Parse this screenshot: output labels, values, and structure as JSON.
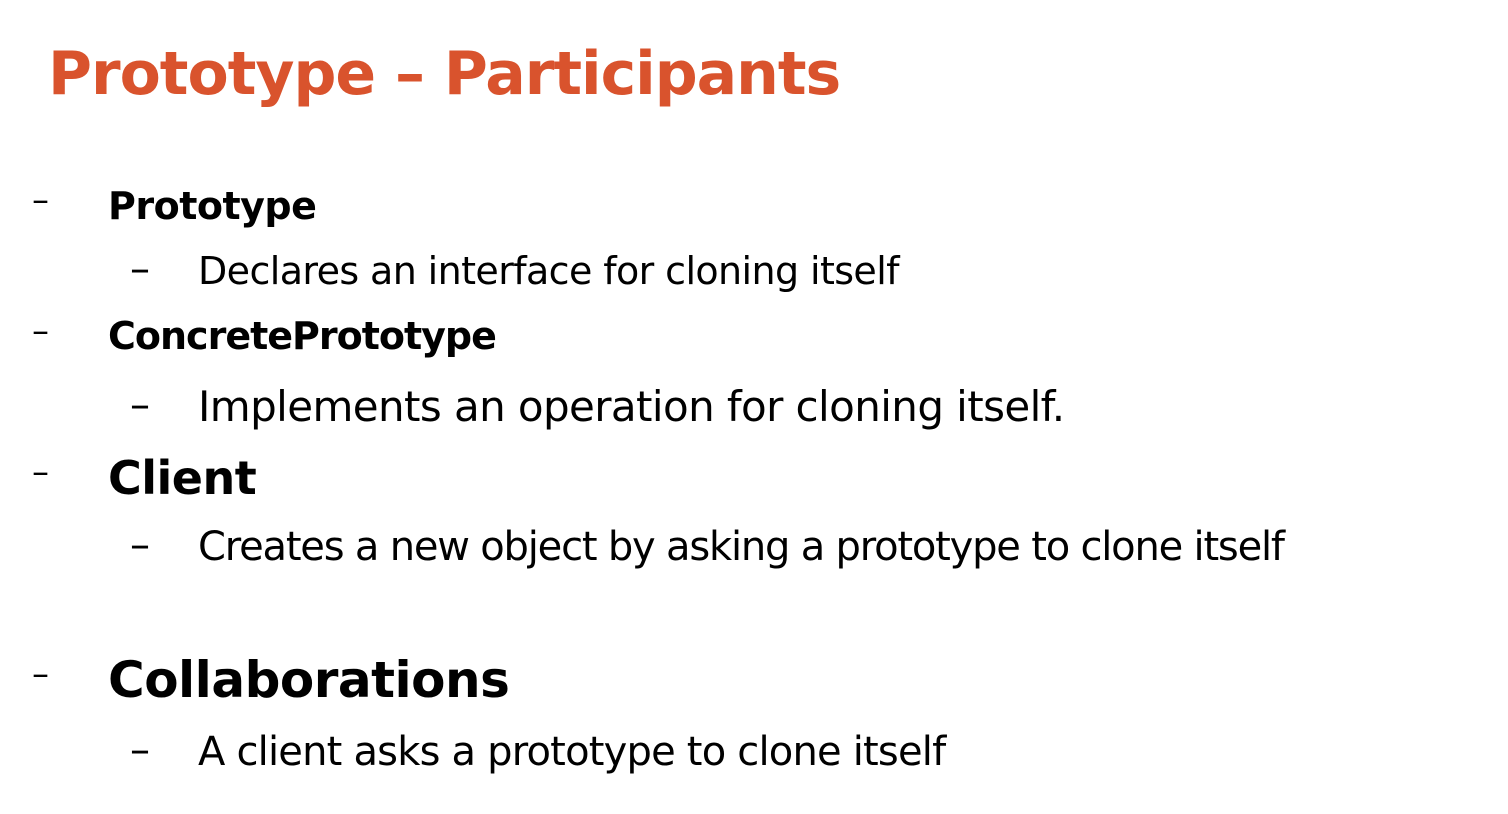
{
  "slide": {
    "title": "Prototype – Participants",
    "title_color": "#D9532D",
    "bullet_marker": "–",
    "sub_bullet_marker": "–",
    "items": [
      {
        "heading": "Prototype",
        "detail": "Declares an interface for cloning itself"
      },
      {
        "heading": "ConcretePrototype",
        "detail": "Implements an operation for cloning itself."
      },
      {
        "heading": "Client",
        "detail": "Creates a new object by asking a prototype to clone itself"
      },
      {
        "heading": "Collaborations",
        "detail": "A client asks a prototype to clone itself"
      }
    ]
  }
}
